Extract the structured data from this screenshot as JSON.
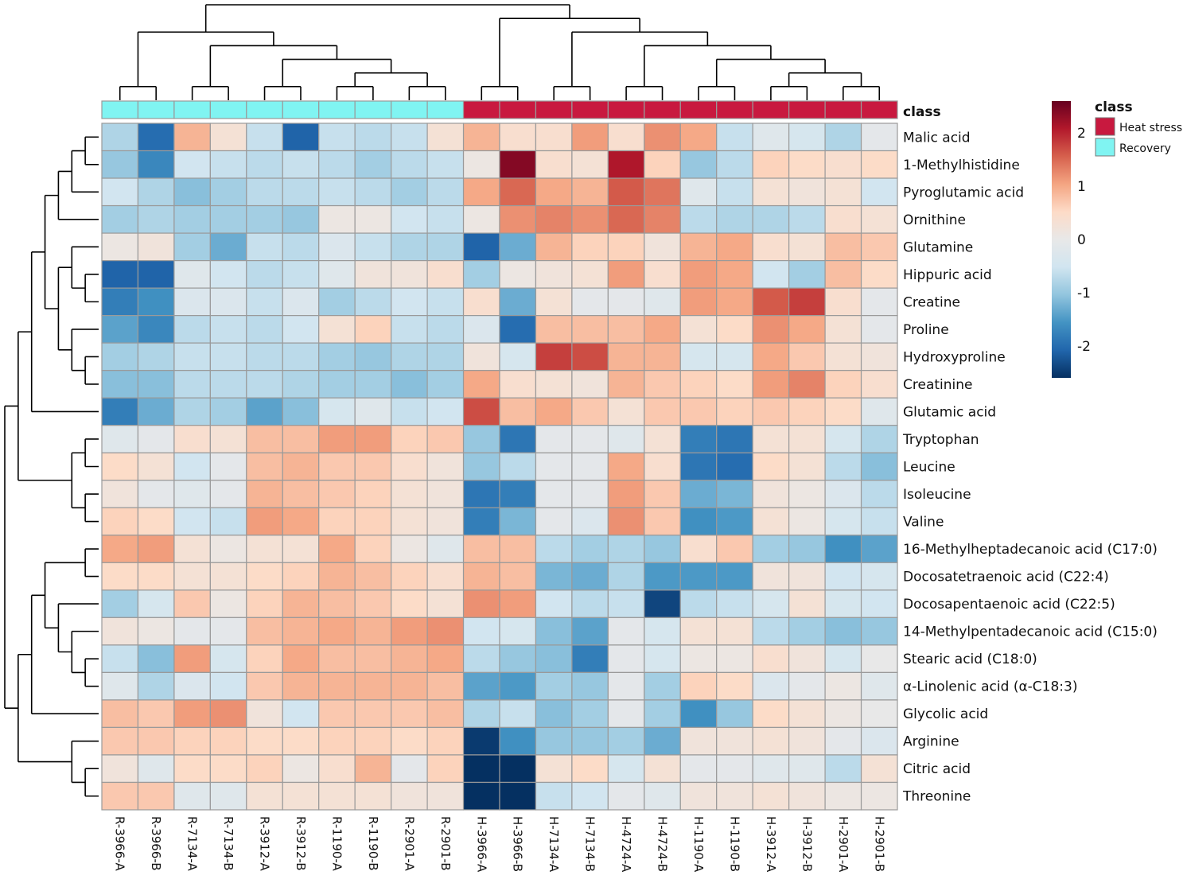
{
  "chart_data": {
    "type": "heatmap",
    "class_track_label": "class",
    "legend": {
      "title": "class",
      "entries": [
        {
          "label": "Heat stress",
          "color": "#c8193f"
        },
        {
          "label": "Recovery",
          "color": "#80f4f2"
        }
      ]
    },
    "colorbar": {
      "range": [
        -2.6,
        2.6
      ],
      "ticks": [
        {
          "value": 2,
          "label": "2"
        },
        {
          "value": 1,
          "label": "1"
        },
        {
          "value": 0,
          "label": "0"
        },
        {
          "value": -1,
          "label": "-1"
        },
        {
          "value": -2,
          "label": "-2"
        }
      ],
      "colors": [
        "#053061",
        "#2166ac",
        "#4393c3",
        "#92c5de",
        "#d1e5f0",
        "#e8e8e8",
        "#fddbc7",
        "#f4a582",
        "#d6604d",
        "#b2182b",
        "#67001f"
      ]
    },
    "columns": [
      "R-3966-A",
      "R-3966-B",
      "R-7134-A",
      "R-7134-B",
      "R-3912-A",
      "R-3912-B",
      "R-1190-A",
      "R-1190-B",
      "R-2901-A",
      "R-2901-B",
      "H-3966-A",
      "H-3966-B",
      "H-7134-A",
      "H-7134-B",
      "H-4724-A",
      "H-4724-B",
      "H-1190-A",
      "H-1190-B",
      "H-3912-A",
      "H-3912-B",
      "H-2901-A",
      "H-2901-B"
    ],
    "column_class": [
      "Recovery",
      "Recovery",
      "Recovery",
      "Recovery",
      "Recovery",
      "Recovery",
      "Recovery",
      "Recovery",
      "Recovery",
      "Recovery",
      "Heat stress",
      "Heat stress",
      "Heat stress",
      "Heat stress",
      "Heat stress",
      "Heat stress",
      "Heat stress",
      "Heat stress",
      "Heat stress",
      "Heat stress",
      "Heat stress",
      "Heat stress"
    ],
    "rows": [
      "Malic acid",
      "1-Methylhistidine",
      "Pyroglutamic acid",
      "Ornithine",
      "Glutamine",
      "Hippuric acid",
      "Creatine",
      "Proline",
      "Hydroxyproline",
      "Creatinine",
      "Glutamic acid",
      "Tryptophan",
      "Leucine",
      "Isoleucine",
      "Valine",
      "16-Methylheptadecanoic acid (C17:0)",
      "Docosatetraenoic acid (C22:4)",
      "Docosapentaenoic acid (C22:5)",
      "14-Methylpentadecanoic acid (C15:0)",
      "Stearic acid (C18:0)",
      "α-Linolenic acid (α-C18:3)",
      "Glycolic acid",
      "Arginine",
      "Citric acid",
      "Threonine"
    ],
    "values": [
      [
        -0.8,
        -2.0,
        0.9,
        0.3,
        -0.6,
        -2.1,
        -0.6,
        -0.7,
        -0.6,
        0.3,
        0.9,
        0.4,
        0.4,
        1.1,
        0.4,
        1.2,
        1.0,
        -0.6,
        -0.2,
        -0.4,
        -0.8,
        -0.1
      ],
      [
        -1.0,
        -1.7,
        -0.5,
        -0.6,
        -0.7,
        -0.6,
        -0.7,
        -0.9,
        -0.7,
        -0.6,
        0.1,
        2.4,
        0.4,
        0.3,
        2.1,
        0.6,
        -1.0,
        -0.7,
        0.6,
        0.5,
        0.4,
        0.5
      ],
      [
        -0.5,
        -0.8,
        -1.1,
        -0.9,
        -0.7,
        -0.7,
        -0.6,
        -0.7,
        -0.9,
        -0.7,
        1.0,
        1.5,
        1.0,
        0.9,
        1.6,
        1.4,
        -0.2,
        -0.6,
        0.3,
        0.2,
        0.3,
        -0.5
      ],
      [
        -0.9,
        -0.8,
        -0.9,
        -0.9,
        -0.9,
        -1.0,
        0.1,
        0.1,
        -0.5,
        -0.6,
        0.1,
        1.2,
        1.3,
        1.2,
        1.5,
        1.3,
        -0.7,
        -0.8,
        -0.8,
        -0.7,
        0.4,
        0.3
      ],
      [
        0.1,
        0.2,
        -0.9,
        -1.3,
        -0.6,
        -0.7,
        -0.3,
        -0.6,
        -0.8,
        -0.8,
        -2.1,
        -1.3,
        0.9,
        0.6,
        0.6,
        0.2,
        0.9,
        1.0,
        0.4,
        0.3,
        0.8,
        0.7
      ],
      [
        -2.1,
        -2.1,
        -0.2,
        -0.5,
        -0.7,
        -0.6,
        -0.2,
        0.2,
        0.2,
        0.4,
        -0.9,
        0.1,
        0.2,
        0.3,
        1.1,
        0.4,
        1.1,
        1.0,
        -0.5,
        -0.9,
        0.8,
        0.5
      ],
      [
        -1.8,
        -1.6,
        -0.3,
        -0.3,
        -0.6,
        -0.3,
        -0.9,
        -0.7,
        -0.5,
        -0.6,
        0.4,
        -1.3,
        0.3,
        -0.1,
        -0.1,
        -0.2,
        1.1,
        1.0,
        1.6,
        1.8,
        0.4,
        -0.1
      ],
      [
        -1.4,
        -1.7,
        -0.7,
        -0.6,
        -0.7,
        -0.5,
        0.3,
        0.6,
        -0.6,
        -0.7,
        -0.3,
        -2.0,
        0.8,
        0.8,
        0.8,
        1.0,
        0.3,
        0.5,
        1.2,
        1.0,
        0.3,
        -0.1
      ],
      [
        -0.9,
        -0.8,
        -0.6,
        -0.6,
        -0.7,
        -0.7,
        -0.9,
        -1.0,
        -0.8,
        -0.8,
        0.2,
        -0.4,
        1.8,
        1.7,
        0.9,
        0.9,
        -0.4,
        -0.4,
        1.0,
        0.7,
        0.3,
        0.2
      ],
      [
        -1.1,
        -1.1,
        -0.7,
        -0.7,
        -0.7,
        -0.8,
        -0.9,
        -0.9,
        -1.1,
        -0.9,
        1.0,
        0.4,
        0.3,
        0.2,
        0.9,
        0.7,
        0.6,
        0.5,
        1.1,
        1.3,
        0.6,
        0.4
      ],
      [
        -1.8,
        -1.3,
        -0.8,
        -0.9,
        -1.4,
        -1.1,
        -0.4,
        -0.2,
        -0.6,
        -0.5,
        1.7,
        0.8,
        1.0,
        0.7,
        0.3,
        0.7,
        0.7,
        0.6,
        0.7,
        0.6,
        0.5,
        -0.2
      ],
      [
        -0.2,
        -0.1,
        0.4,
        0.3,
        0.8,
        0.8,
        1.1,
        1.1,
        0.6,
        0.7,
        -1.0,
        -1.9,
        -0.1,
        -0.1,
        -0.2,
        0.3,
        -1.8,
        -1.9,
        0.3,
        0.3,
        -0.4,
        -0.8
      ],
      [
        0.5,
        0.3,
        -0.5,
        -0.1,
        0.8,
        0.9,
        0.7,
        0.7,
        0.4,
        0.2,
        -1.0,
        -0.7,
        -0.1,
        -0.1,
        1.0,
        0.4,
        -1.9,
        -2.0,
        0.5,
        0.3,
        -0.7,
        -1.1
      ],
      [
        0.2,
        -0.1,
        -0.2,
        -0.1,
        0.9,
        0.8,
        0.7,
        0.6,
        0.3,
        0.2,
        -1.9,
        -1.8,
        -0.1,
        -0.1,
        1.1,
        0.7,
        -1.3,
        -1.2,
        0.2,
        0.1,
        -0.3,
        -0.7
      ],
      [
        0.6,
        0.5,
        -0.5,
        -0.6,
        1.1,
        1.0,
        0.6,
        0.6,
        0.3,
        0.2,
        -1.8,
        -1.2,
        -0.1,
        -0.3,
        1.2,
        0.7,
        -1.6,
        -1.5,
        0.3,
        0.1,
        -0.4,
        -0.6
      ],
      [
        1.0,
        1.1,
        0.3,
        0.1,
        0.3,
        0.3,
        1.0,
        0.6,
        0.1,
        -0.2,
        0.8,
        0.8,
        -0.7,
        -0.9,
        -0.8,
        -1.0,
        0.4,
        0.7,
        -0.9,
        -1.0,
        -1.6,
        -1.4
      ],
      [
        0.5,
        0.5,
        0.3,
        0.3,
        0.5,
        0.6,
        0.9,
        0.8,
        0.6,
        0.4,
        0.9,
        0.8,
        -1.2,
        -1.3,
        -0.8,
        -1.5,
        -1.5,
        -1.5,
        0.2,
        0.2,
        -0.5,
        -0.4
      ],
      [
        -0.9,
        -0.4,
        0.7,
        0.1,
        0.6,
        0.9,
        0.8,
        0.7,
        0.5,
        0.3,
        1.2,
        1.1,
        -0.5,
        -0.7,
        -0.6,
        -2.4,
        -0.7,
        -0.6,
        -0.4,
        0.3,
        -0.4,
        -0.5
      ],
      [
        0.2,
        0.1,
        -0.1,
        -0.1,
        0.8,
        0.9,
        1.0,
        0.9,
        1.1,
        1.2,
        -0.5,
        -0.4,
        -1.1,
        -1.4,
        -0.1,
        -0.4,
        0.3,
        0.3,
        -0.7,
        -0.9,
        -1.1,
        -1.0
      ],
      [
        -0.6,
        -1.1,
        1.1,
        -0.4,
        0.6,
        1.0,
        0.8,
        0.8,
        0.9,
        1.0,
        -0.7,
        -1.0,
        -1.1,
        -1.8,
        -0.1,
        -0.4,
        0.1,
        0.1,
        0.4,
        0.2,
        -0.4,
        0.0
      ],
      [
        -0.2,
        -0.8,
        -0.3,
        -0.5,
        0.7,
        0.9,
        0.9,
        0.9,
        0.9,
        0.8,
        -1.4,
        -1.5,
        -0.9,
        -1.0,
        -0.1,
        -0.9,
        0.6,
        0.5,
        -0.3,
        -0.1,
        0.1,
        -0.2
      ],
      [
        0.8,
        0.7,
        1.1,
        1.2,
        0.2,
        -0.5,
        0.7,
        0.7,
        0.7,
        0.8,
        -0.8,
        -0.6,
        -1.1,
        -0.9,
        -0.1,
        -0.9,
        -1.6,
        -1.0,
        0.5,
        0.3,
        0.1,
        0.0
      ],
      [
        0.7,
        0.7,
        0.6,
        0.6,
        0.5,
        0.5,
        0.6,
        0.6,
        0.5,
        0.6,
        -2.5,
        -1.6,
        -1.0,
        -1.0,
        -0.9,
        -1.3,
        0.2,
        0.2,
        0.3,
        0.2,
        -0.1,
        -0.3
      ],
      [
        0.2,
        -0.2,
        0.5,
        0.5,
        0.6,
        0.1,
        0.4,
        0.9,
        -0.1,
        0.6,
        -2.6,
        -2.7,
        0.3,
        0.5,
        -0.4,
        0.3,
        -0.1,
        -0.1,
        -0.2,
        -0.2,
        -0.7,
        0.3
      ],
      [
        0.7,
        0.7,
        -0.2,
        -0.2,
        0.3,
        0.3,
        0.3,
        0.3,
        0.2,
        0.2,
        -2.6,
        -2.7,
        -0.6,
        -0.5,
        -0.1,
        -0.2,
        0.2,
        0.2,
        0.3,
        0.2,
        0.1,
        0.1
      ]
    ],
    "row_dendrogram": "(((((((((0,1),2),3),((4,(5,6)),(7,(8,9)))),10)),((11,12),(13,14))),(((((15,16),(17,(18,(19,20)))),21),(22,(23,24))))))",
    "column_dendrogram": "((((0,1),((2,3),((4,5),((6,7),(8,9)))))),(((10,11)),((12,13),(((14,15)),((16,17),((18,19),(20,21)))))))"
  }
}
